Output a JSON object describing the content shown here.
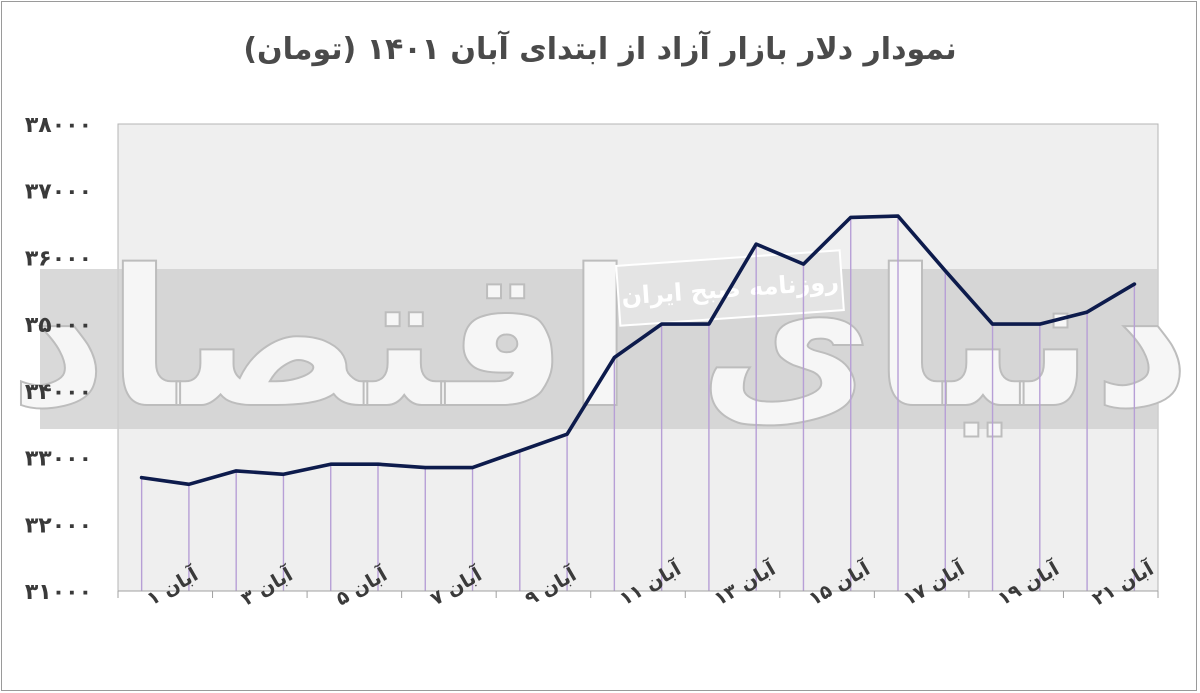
{
  "chart_data": {
    "type": "line",
    "title": "نمودار دلار بازار آزاد از ابتدای آبان ۱۴۰۱ (تومان)",
    "x": [
      1,
      2,
      3,
      4,
      5,
      6,
      7,
      8,
      9,
      10,
      11,
      12,
      13,
      14,
      15,
      16,
      17,
      18,
      19,
      20,
      21,
      22
    ],
    "xtick_labels": [
      "آبان ۱",
      "آبان ۳",
      "آبان ۵",
      "آبان ۷",
      "آبان ۹",
      "آبان ۱۱",
      "آبان ۱۳",
      "آبان ۱۵",
      "آبان ۱۷",
      "آبان ۱۹",
      "آبان ۲۱"
    ],
    "xtick_values": [
      1,
      3,
      5,
      7,
      9,
      11,
      13,
      15,
      17,
      19,
      21
    ],
    "series": [
      {
        "values": [
          32700,
          32600,
          32800,
          32750,
          32900,
          32900,
          32850,
          32850,
          33100,
          33350,
          34500,
          35000,
          35000,
          36200,
          35900,
          36600,
          36620,
          35800,
          35000,
          35000,
          35180,
          35600
        ],
        "color": "#0d1b4c"
      }
    ],
    "yticks": [
      31000,
      32000,
      33000,
      34000,
      35000,
      36000,
      37000,
      38000
    ],
    "ytick_labels": [
      "۳۱۰۰۰",
      "۳۲۰۰۰",
      "۳۳۰۰۰",
      "۳۴۰۰۰",
      "۳۵۰۰۰",
      "۳۶۰۰۰",
      "۳۷۰۰۰",
      "۳۸۰۰۰"
    ],
    "ylim": [
      31000,
      38000
    ],
    "drop_line_color": "#b79fd6",
    "plot_area_fill": "#efefef",
    "grid": false,
    "legend": "none"
  },
  "watermark": {
    "logo_text": "دنیای اقتصاد",
    "tagline": "روزنامه صبح ایران"
  }
}
